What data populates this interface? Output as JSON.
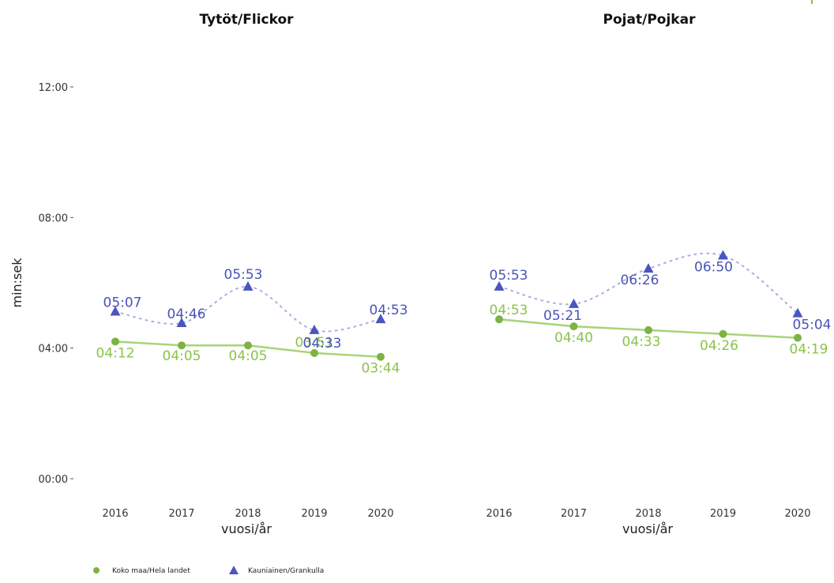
{
  "chart_data": {
    "type": "line",
    "ylabel": "min:sek",
    "y_ticks": [
      "00:00",
      "04:00",
      "08:00",
      "12:00"
    ],
    "ylim_seconds": [
      0,
      720
    ],
    "grid": false,
    "legend_position": "bottom-left",
    "colors": {
      "koko_maa": "#8bc34a",
      "kauniainen": "#4854b8",
      "corner_mark": "#8bc34a"
    },
    "legend": [
      {
        "key": "koko_maa",
        "label": "Koko maa/Hela landet",
        "marker": "circle",
        "line": "solid"
      },
      {
        "key": "kauniainen",
        "label": "Kauniainen/Grankulla",
        "marker": "triangle",
        "line": "dotted"
      }
    ],
    "panels": [
      {
        "title": "Tytöt/Flickor",
        "xlabel": "vuosi/år",
        "categories": [
          "2016",
          "2017",
          "2018",
          "2019",
          "2020"
        ],
        "series": [
          {
            "name": "Koko maa/Hela landet",
            "key": "koko_maa",
            "values": [
              252,
              245,
              245,
              231,
              224
            ],
            "labels": [
              "04:12",
              "04:05",
              "04:05",
              "03:51",
              "03:44"
            ]
          },
          {
            "name": "Kauniainen/Grankulla",
            "key": "kauniainen",
            "values": [
              307,
              286,
              353,
              273,
              293
            ],
            "labels": [
              "05:07",
              "04:46",
              "05:53",
              "04:33",
              "04:53"
            ]
          }
        ]
      },
      {
        "title": "Pojat/Pojkar",
        "xlabel": "vuosi/år",
        "categories": [
          "2016",
          "2017",
          "2018",
          "2019",
          "2020"
        ],
        "series": [
          {
            "name": "Koko maa/Hela landet",
            "key": "koko_maa",
            "values": [
              293,
              280,
              273,
              266,
              259
            ],
            "labels": [
              "04:53",
              "04:40",
              "04:33",
              "04:26",
              "04:19"
            ]
          },
          {
            "name": "Kauniainen/Grankulla",
            "key": "kauniainen",
            "values": [
              353,
              321,
              386,
              410,
              304
            ],
            "labels": [
              "05:53",
              "05:21",
              "06:26",
              "06:50",
              "05:04"
            ]
          }
        ]
      }
    ]
  }
}
